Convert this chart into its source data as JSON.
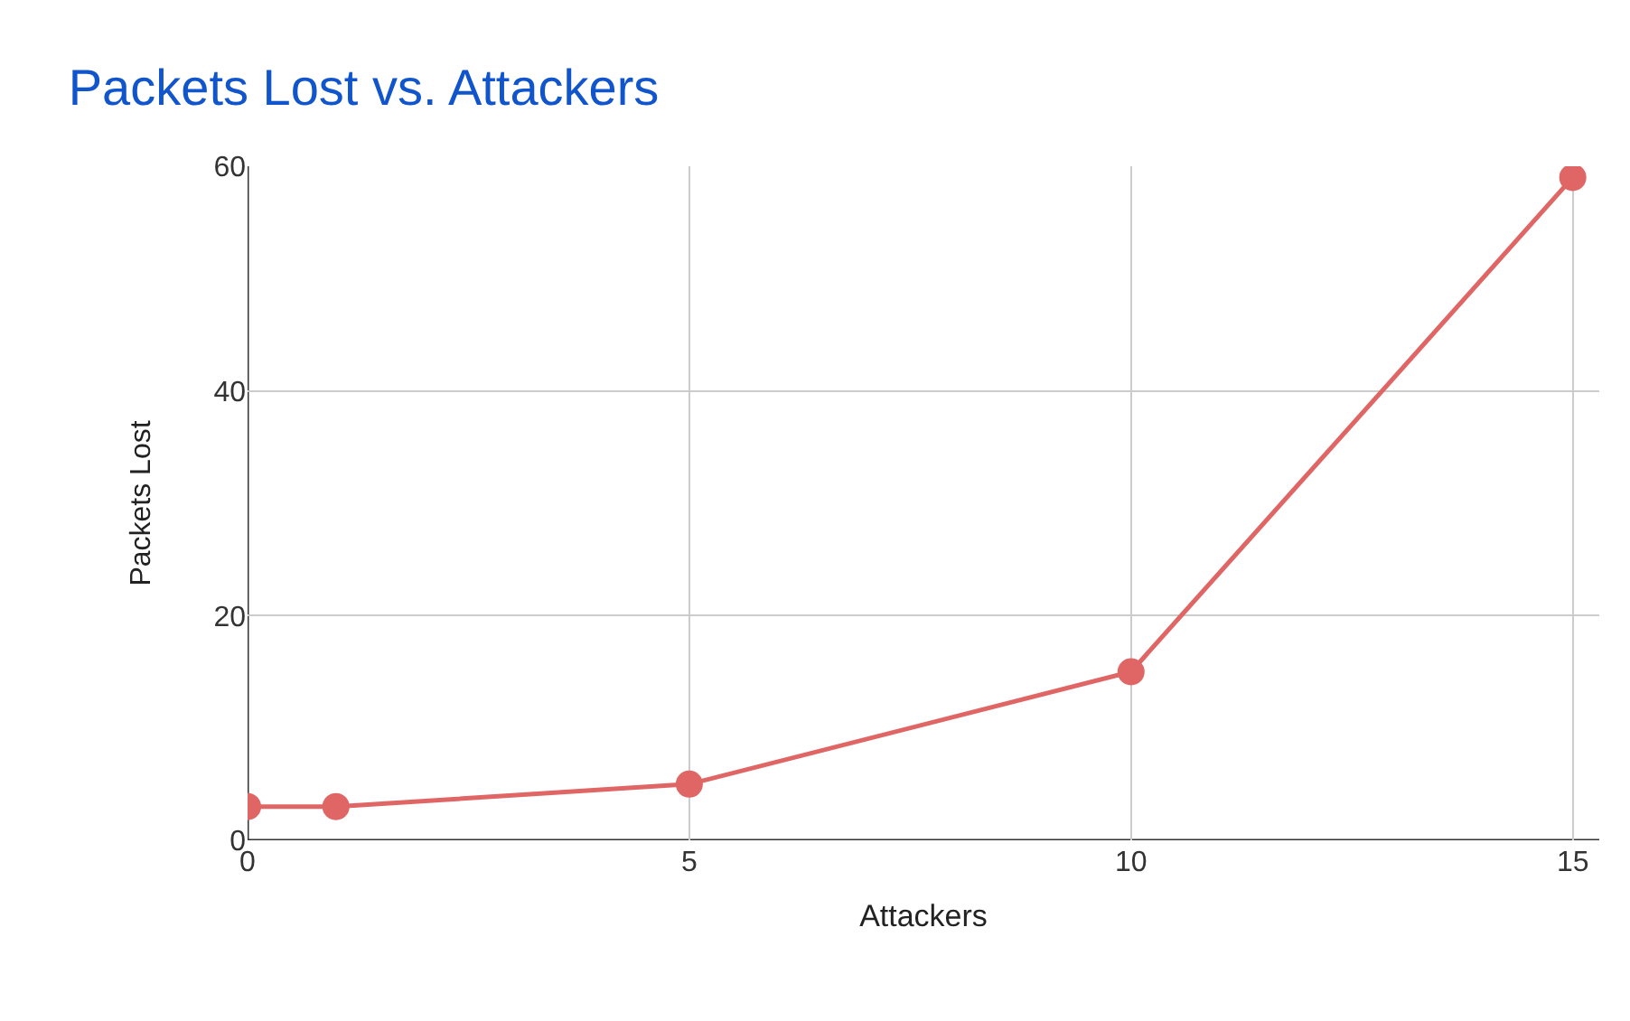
{
  "chart_data": {
    "type": "line",
    "title": "Packets Lost vs. Attackers",
    "xlabel": "Attackers",
    "ylabel": "Packets Lost",
    "x": [
      0,
      1,
      5,
      10,
      15
    ],
    "series": [
      {
        "color": "#e06666",
        "values": [
          3,
          3,
          5,
          15,
          59
        ]
      }
    ],
    "xlim": [
      0,
      15.3
    ],
    "xticks": [
      0,
      5,
      10,
      15
    ],
    "ylim": [
      0,
      60
    ],
    "yticks": [
      0,
      20,
      40,
      60
    ],
    "grid": true,
    "marker": "circle",
    "line_style": "solid"
  }
}
